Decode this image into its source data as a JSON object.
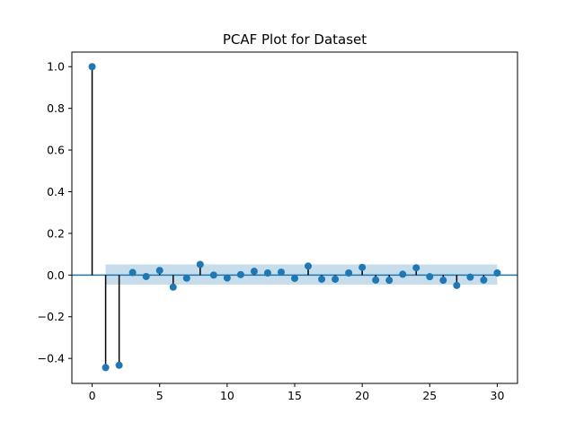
{
  "chart_data": {
    "type": "stem",
    "title": "PCAF Plot for Dataset",
    "xlabel": "",
    "ylabel": "",
    "xlim": [
      -1.5,
      31.5
    ],
    "ylim": [
      -0.52,
      1.07
    ],
    "xticks": [
      0,
      5,
      10,
      15,
      20,
      25,
      30
    ],
    "yticks": [
      1.0,
      0.8,
      0.6,
      0.4,
      0.2,
      0.0,
      -0.2,
      -0.4
    ],
    "ytick_labels": [
      "1.0",
      "0.8",
      "0.6",
      "0.4",
      "0.2",
      "0.0",
      "−0.2",
      "−0.4"
    ],
    "grid": false,
    "confidence_band": {
      "x_start": 1,
      "x_end": 30,
      "lower": -0.046,
      "upper": 0.051
    },
    "lags": [
      0,
      1,
      2,
      3,
      4,
      5,
      6,
      7,
      8,
      9,
      10,
      11,
      12,
      13,
      14,
      15,
      16,
      17,
      18,
      19,
      20,
      21,
      22,
      23,
      24,
      25,
      26,
      27,
      28,
      29,
      30
    ],
    "values": [
      1.0,
      -0.444,
      -0.433,
      0.012,
      -0.007,
      0.022,
      -0.058,
      -0.015,
      0.051,
      0.0,
      -0.014,
      0.002,
      0.018,
      0.01,
      0.014,
      -0.016,
      0.043,
      -0.02,
      -0.02,
      0.01,
      0.037,
      -0.024,
      -0.025,
      0.004,
      0.035,
      -0.008,
      -0.025,
      -0.05,
      -0.01,
      -0.024,
      0.01
    ]
  }
}
